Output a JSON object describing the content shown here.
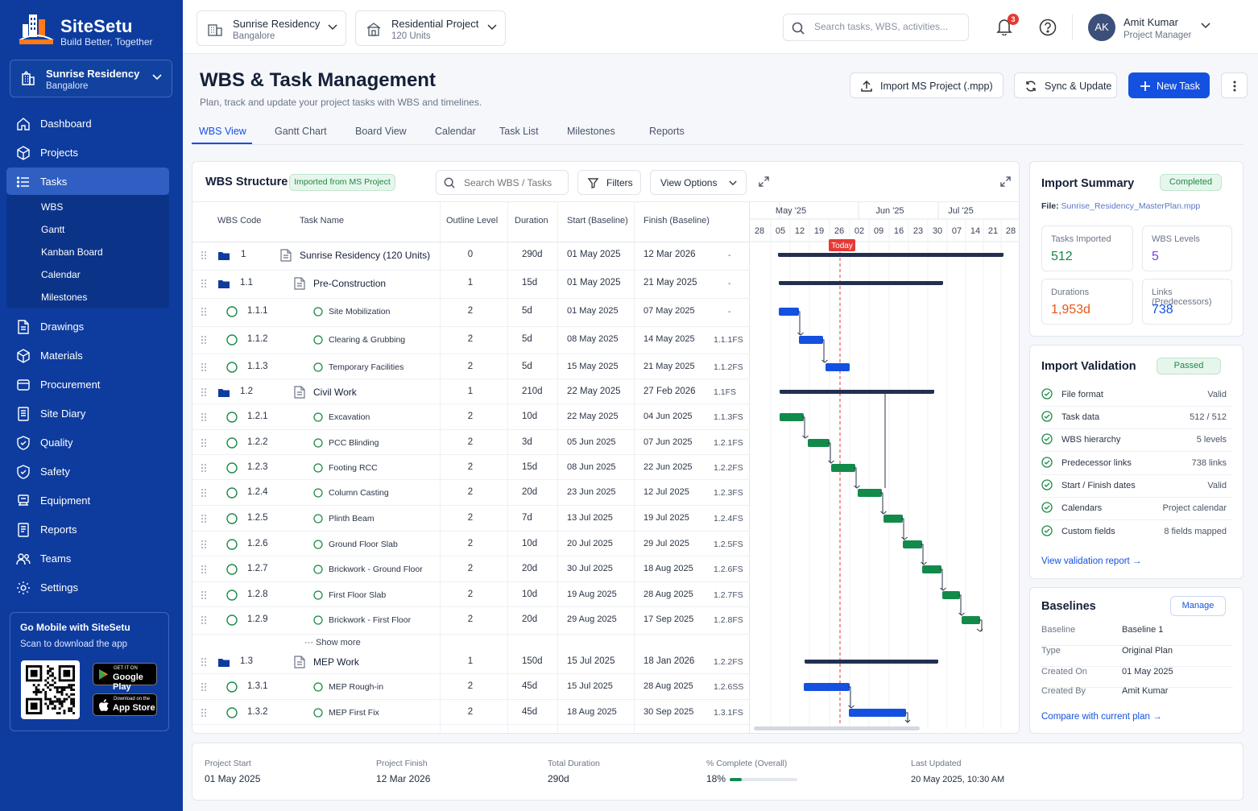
{
  "brand": {
    "name": "SiteSetu",
    "tagline": "Build Better, Together",
    "logo_text": "SITESETU"
  },
  "sidebar": {
    "site_selector": {
      "name": "Sunrise Residency",
      "city": "Bangalore"
    },
    "items": [
      {
        "label": "Dashboard",
        "icon": "home-icon"
      },
      {
        "label": "Projects",
        "icon": "cube-icon"
      },
      {
        "label": "Tasks",
        "icon": "list-icon",
        "active": true
      },
      {
        "label": "Drawings",
        "icon": "document-icon"
      },
      {
        "label": "Materials",
        "icon": "box-icon"
      },
      {
        "label": "Procurement",
        "icon": "cart-icon"
      },
      {
        "label": "Site Diary",
        "icon": "notebook-icon"
      },
      {
        "label": "Quality",
        "icon": "shield-check-icon"
      },
      {
        "label": "Safety",
        "icon": "shield-icon"
      },
      {
        "label": "Equipment",
        "icon": "machine-icon"
      },
      {
        "label": "Reports",
        "icon": "report-icon"
      },
      {
        "label": "Teams",
        "icon": "users-icon"
      },
      {
        "label": "Settings",
        "icon": "gear-icon"
      }
    ],
    "sub_items": [
      "WBS",
      "Gantt",
      "Kanban Board",
      "Calendar",
      "Milestones"
    ],
    "mobile": {
      "title": "Go Mobile with SiteSetu",
      "subtitle": "Scan to download the app",
      "google_top": "GET IT ON",
      "google_name": "Google Play",
      "apple_top": "Download on the",
      "apple_name": "App Store"
    }
  },
  "topbar": {
    "project_select": {
      "name": "Sunrise Residency",
      "sub": "Bangalore"
    },
    "type_select": {
      "name": "Residential Project",
      "sub": "120 Units"
    },
    "search_placeholder": "Search tasks, WBS, activities...",
    "notification_count": "3",
    "user": {
      "initials": "AK",
      "name": "Amit Kumar",
      "role": "Project Manager"
    }
  },
  "page": {
    "title": "WBS & Task Management",
    "subtitle": "Plan, track and update your project tasks with WBS and timelines.",
    "actions": {
      "import": "Import MS Project (.mpp)",
      "sync": "Sync & Update",
      "new_task": "New Task"
    },
    "tabs": [
      "WBS View",
      "Gantt Chart",
      "Board View",
      "Calendar",
      "Task List",
      "Milestones",
      "Reports"
    ]
  },
  "wbs": {
    "title": "WBS Structure",
    "badge": "Imported from MS Project",
    "search_placeholder": "Search WBS / Tasks",
    "filters": "Filters",
    "view_options": "View Options",
    "columns": [
      "WBS Code",
      "Task Name",
      "Outline Level",
      "Duration",
      "Start (Baseline)",
      "Finish (Baseline)"
    ],
    "show_more": "Show more",
    "rows": [
      {
        "code": "1",
        "name": "Sunrise Residency (120 Units)",
        "level": "0",
        "duration": "290d",
        "start": "01 May 2025",
        "finish": "12 Mar 2026",
        "pred": "-",
        "type": "root"
      },
      {
        "code": "1.1",
        "name": "Pre-Construction",
        "level": "1",
        "duration": "15d",
        "start": "01 May 2025",
        "finish": "21 May 2025",
        "pred": "-",
        "type": "group"
      },
      {
        "code": "1.1.1",
        "name": "Site Mobilization",
        "level": "2",
        "duration": "5d",
        "start": "01 May 2025",
        "finish": "07 May 2025",
        "pred": "-",
        "type": "task"
      },
      {
        "code": "1.1.2",
        "name": "Clearing & Grubbing",
        "level": "2",
        "duration": "5d",
        "start": "08 May 2025",
        "finish": "14 May 2025",
        "pred": "1.1.1FS",
        "type": "task"
      },
      {
        "code": "1.1.3",
        "name": "Temporary Facilities",
        "level": "2",
        "duration": "5d",
        "start": "15 May 2025",
        "finish": "21 May 2025",
        "pred": "1.1.2FS",
        "type": "task"
      },
      {
        "code": "1.2",
        "name": "Civil Work",
        "level": "1",
        "duration": "210d",
        "start": "22 May 2025",
        "finish": "27 Feb 2026",
        "pred": "1.1FS",
        "type": "group"
      },
      {
        "code": "1.2.1",
        "name": "Excavation",
        "level": "2",
        "duration": "10d",
        "start": "22 May 2025",
        "finish": "04 Jun 2025",
        "pred": "1.1.3FS",
        "type": "task"
      },
      {
        "code": "1.2.2",
        "name": "PCC Blinding",
        "level": "2",
        "duration": "3d",
        "start": "05 Jun 2025",
        "finish": "07 Jun 2025",
        "pred": "1.2.1FS",
        "type": "task"
      },
      {
        "code": "1.2.3",
        "name": "Footing RCC",
        "level": "2",
        "duration": "15d",
        "start": "08 Jun 2025",
        "finish": "22 Jun 2025",
        "pred": "1.2.2FS",
        "type": "task"
      },
      {
        "code": "1.2.4",
        "name": "Column Casting",
        "level": "2",
        "duration": "20d",
        "start": "23 Jun 2025",
        "finish": "12 Jul 2025",
        "pred": "1.2.3FS",
        "type": "task"
      },
      {
        "code": "1.2.5",
        "name": "Plinth Beam",
        "level": "2",
        "duration": "7d",
        "start": "13 Jul 2025",
        "finish": "19 Jul 2025",
        "pred": "1.2.4FS",
        "type": "task"
      },
      {
        "code": "1.2.6",
        "name": "Ground Floor Slab",
        "level": "2",
        "duration": "10d",
        "start": "20 Jul 2025",
        "finish": "29 Jul 2025",
        "pred": "1.2.5FS",
        "type": "task"
      },
      {
        "code": "1.2.7",
        "name": "Brickwork - Ground Floor",
        "level": "2",
        "duration": "20d",
        "start": "30 Jul 2025",
        "finish": "18 Aug 2025",
        "pred": "1.2.6FS",
        "type": "task"
      },
      {
        "code": "1.2.8",
        "name": "First Floor Slab",
        "level": "2",
        "duration": "10d",
        "start": "19 Aug 2025",
        "finish": "28 Aug 2025",
        "pred": "1.2.7FS",
        "type": "task"
      },
      {
        "code": "1.2.9",
        "name": "Brickwork - First Floor",
        "level": "2",
        "duration": "20d",
        "start": "29 Aug 2025",
        "finish": "17 Sep 2025",
        "pred": "1.2.8FS",
        "type": "task"
      },
      {
        "code": "1.3",
        "name": "MEP Work",
        "level": "1",
        "duration": "150d",
        "start": "15 Jul 2025",
        "finish": "18 Jan 2026",
        "pred": "1.2.2FS",
        "type": "group"
      },
      {
        "code": "1.3.1",
        "name": "MEP Rough-in",
        "level": "2",
        "duration": "45d",
        "start": "15 Jul 2025",
        "finish": "28 Aug 2025",
        "pred": "1.2.6SS",
        "type": "task"
      },
      {
        "code": "1.3.2",
        "name": "MEP First Fix",
        "level": "2",
        "duration": "45d",
        "start": "18 Aug 2025",
        "finish": "30 Sep 2025",
        "pred": "1.3.1FS",
        "type": "task"
      }
    ]
  },
  "gantt": {
    "months": [
      "May '25",
      "Jun '25",
      "Jul '25"
    ],
    "days": [
      "28",
      "05",
      "12",
      "19",
      "26",
      "02",
      "09",
      "16",
      "23",
      "30",
      "07",
      "14",
      "21",
      "28"
    ],
    "today_label": "Today",
    "colors": {
      "prep": "#1451e0",
      "civil": "#128a4a",
      "summary": "#223050",
      "today": "#e53935"
    }
  },
  "import_summary": {
    "title": "Import Summary",
    "status": "Completed",
    "file_label": "File:",
    "file_name": "Sunrise_Residency_MasterPlan.mpp",
    "stats": [
      {
        "label": "Tasks Imported",
        "value": "512",
        "color": "#128a4a"
      },
      {
        "label": "WBS Levels",
        "value": "5",
        "color": "#7b3fe4"
      },
      {
        "label": "Durations",
        "value": "1,953d",
        "color": "#e4571b"
      },
      {
        "label": "Links (Predecessors)",
        "value": "738",
        "color": "#1451e0"
      }
    ]
  },
  "validation": {
    "title": "Import Validation",
    "status": "Passed",
    "items": [
      {
        "name": "File format",
        "result": "Valid"
      },
      {
        "name": "Task data",
        "result": "512 / 512"
      },
      {
        "name": "WBS hierarchy",
        "result": "5 levels"
      },
      {
        "name": "Predecessor links",
        "result": "738 links"
      },
      {
        "name": "Start / Finish dates",
        "result": "Valid"
      },
      {
        "name": "Calendars",
        "result": "Project calendar"
      },
      {
        "name": "Custom fields",
        "result": "8 fields mapped"
      }
    ],
    "link": "View validation report"
  },
  "baselines": {
    "title": "Baselines",
    "manage": "Manage",
    "rows": [
      {
        "key": "Baseline",
        "value": "Baseline 1"
      },
      {
        "key": "Type",
        "value": "Original Plan"
      },
      {
        "key": "Created On",
        "value": "01 May 2025"
      },
      {
        "key": "Created By",
        "value": "Amit Kumar"
      }
    ],
    "link": "Compare with current plan"
  },
  "footer": {
    "project_start": {
      "label": "Project Start",
      "value": "01 May 2025"
    },
    "project_finish": {
      "label": "Project Finish",
      "value": "12 Mar 2026"
    },
    "total_duration": {
      "label": "Total Duration",
      "value": "290d"
    },
    "complete": {
      "label": "% Complete (Overall)",
      "value": "18%",
      "fraction": 0.18
    },
    "last_updated": {
      "label": "Last Updated",
      "value": "20 May 2025, 10:30 AM"
    }
  }
}
